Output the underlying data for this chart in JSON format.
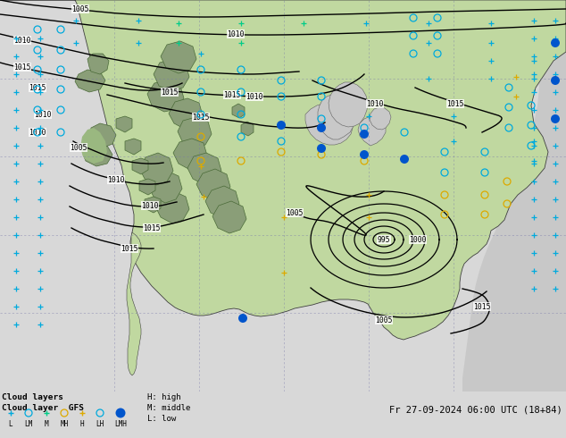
{
  "title_line1": "Cloud layers",
  "title_line2": "Cloud layer  GFS",
  "date_str": "Fr 27-09-2024 06:00 UTC (18+84)",
  "legend_H": "H: high",
  "legend_M": "M: middle",
  "legend_L": "L: low",
  "ocean_color": "#c8c8c8",
  "land_green1": "#c0d8a0",
  "land_green2": "#a8c080",
  "land_green3": "#90a868",
  "land_border": "#505050",
  "contour_color": "#000000",
  "grid_color": "#7777aa",
  "cyan_color": "#00aadd",
  "orange_color": "#ddaa00",
  "blue_dot_color": "#0055cc",
  "green_plus_color": "#00cc88",
  "legend_bg": "#d8d8d8",
  "fig_bg": "#d8d8d8"
}
